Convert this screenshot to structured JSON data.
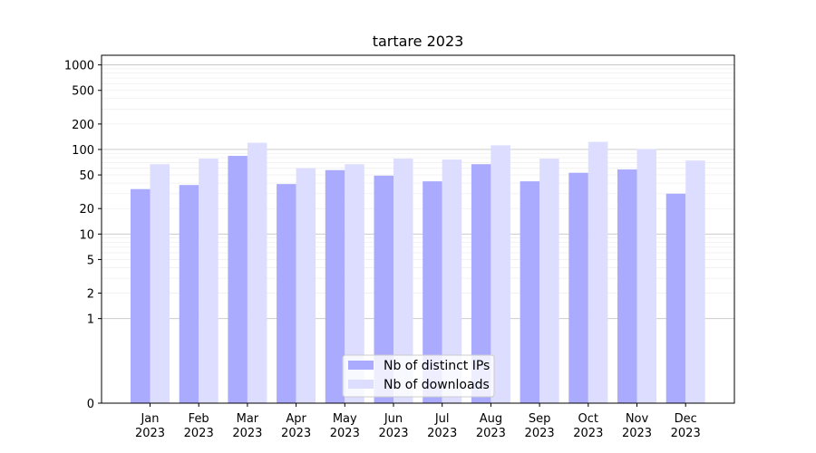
{
  "chart_data": {
    "type": "bar",
    "title": "tartare 2023",
    "xlabel": "",
    "ylabel": "",
    "yscale": "symlog",
    "ylim": [
      0,
      1300
    ],
    "yticks": [
      0,
      1,
      2,
      5,
      10,
      20,
      50,
      100,
      200,
      500,
      1000
    ],
    "categories": [
      "Jan\n2023",
      "Feb\n2023",
      "Mar\n2023",
      "Apr\n2023",
      "May\n2023",
      "Jun\n2023",
      "Jul\n2023",
      "Aug\n2023",
      "Sep\n2023",
      "Oct\n2023",
      "Nov\n2023",
      "Dec\n2023"
    ],
    "series": [
      {
        "name": "Nb of distinct IPs",
        "color": "#aaaaff",
        "values": [
          34,
          38,
          84,
          39,
          57,
          49,
          42,
          67,
          42,
          53,
          58,
          30
        ]
      },
      {
        "name": "Nb of downloads",
        "color": "#ddddff",
        "values": [
          67,
          78,
          120,
          60,
          67,
          78,
          76,
          112,
          78,
          123,
          101,
          74
        ]
      }
    ],
    "grid": true,
    "legend": "bottom-center"
  }
}
